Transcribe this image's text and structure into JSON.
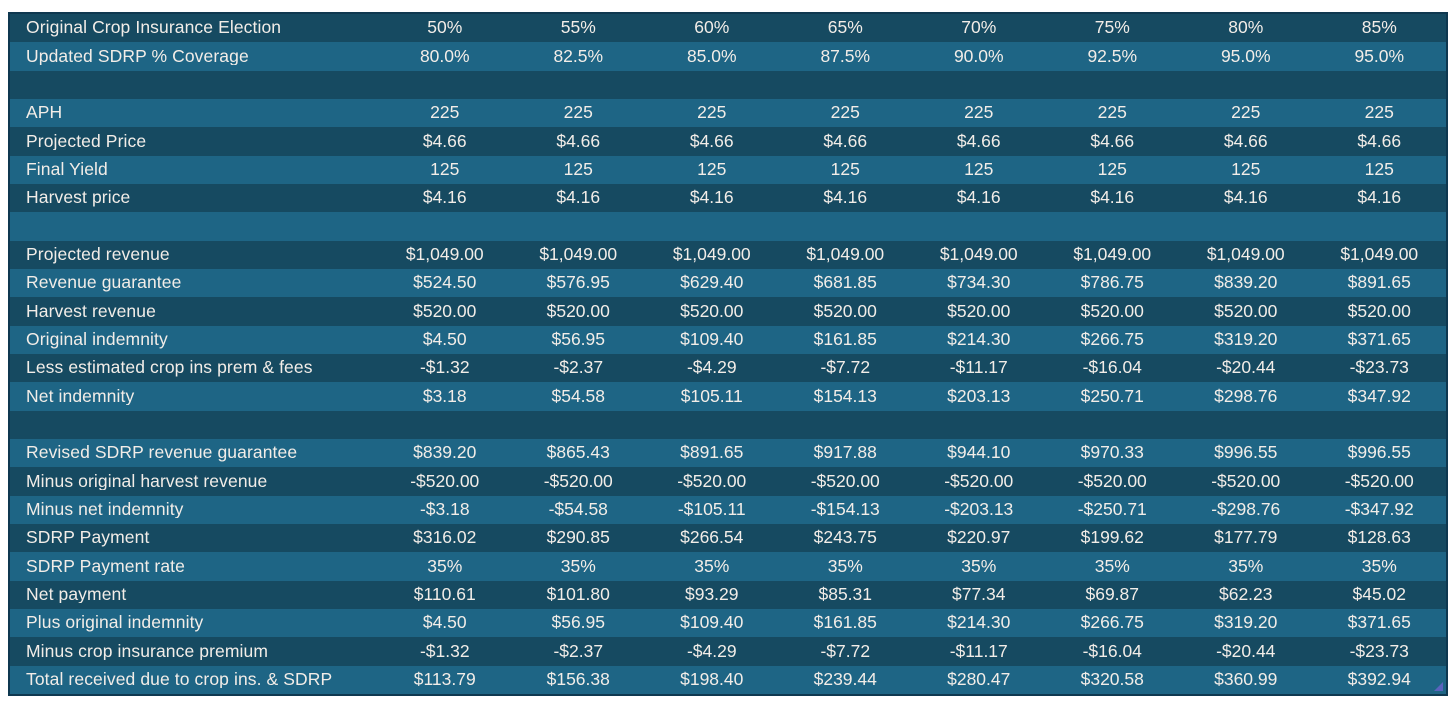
{
  "colors": {
    "page_background": "#ffffff",
    "row_dark": "#164a61",
    "row_light": "#1e6585",
    "text": "#f2ede8",
    "table_border": "#0f3850",
    "fill_handle": "#5a63bd"
  },
  "table": {
    "columns": 8,
    "rows": [
      {
        "label": "Original Crop Insurance Election",
        "values": [
          "50%",
          "55%",
          "60%",
          "65%",
          "70%",
          "75%",
          "80%",
          "85%"
        ]
      },
      {
        "label": "Updated SDRP % Coverage",
        "values": [
          "80.0%",
          "82.5%",
          "85.0%",
          "87.5%",
          "90.0%",
          "92.5%",
          "95.0%",
          "95.0%"
        ]
      },
      {
        "spacer": true
      },
      {
        "label": "APH",
        "values": [
          "225",
          "225",
          "225",
          "225",
          "225",
          "225",
          "225",
          "225"
        ]
      },
      {
        "label": "Projected Price",
        "values": [
          "$4.66",
          "$4.66",
          "$4.66",
          "$4.66",
          "$4.66",
          "$4.66",
          "$4.66",
          "$4.66"
        ]
      },
      {
        "label": "Final Yield",
        "values": [
          "125",
          "125",
          "125",
          "125",
          "125",
          "125",
          "125",
          "125"
        ]
      },
      {
        "label": "Harvest price",
        "values": [
          "$4.16",
          "$4.16",
          "$4.16",
          "$4.16",
          "$4.16",
          "$4.16",
          "$4.16",
          "$4.16"
        ]
      },
      {
        "spacer": true
      },
      {
        "label": "Projected revenue",
        "values": [
          "$1,049.00",
          "$1,049.00",
          "$1,049.00",
          "$1,049.00",
          "$1,049.00",
          "$1,049.00",
          "$1,049.00",
          "$1,049.00"
        ]
      },
      {
        "label": "Revenue guarantee",
        "values": [
          "$524.50",
          "$576.95",
          "$629.40",
          "$681.85",
          "$734.30",
          "$786.75",
          "$839.20",
          "$891.65"
        ]
      },
      {
        "label": "Harvest revenue",
        "values": [
          "$520.00",
          "$520.00",
          "$520.00",
          "$520.00",
          "$520.00",
          "$520.00",
          "$520.00",
          "$520.00"
        ]
      },
      {
        "label": "Original indemnity",
        "values": [
          "$4.50",
          "$56.95",
          "$109.40",
          "$161.85",
          "$214.30",
          "$266.75",
          "$319.20",
          "$371.65"
        ]
      },
      {
        "label": "Less estimated crop ins prem & fees",
        "values": [
          "-$1.32",
          "-$2.37",
          "-$4.29",
          "-$7.72",
          "-$11.17",
          "-$16.04",
          "-$20.44",
          "-$23.73"
        ]
      },
      {
        "label": "Net indemnity",
        "values": [
          "$3.18",
          "$54.58",
          "$105.11",
          "$154.13",
          "$203.13",
          "$250.71",
          "$298.76",
          "$347.92"
        ]
      },
      {
        "spacer": true
      },
      {
        "label": "Revised SDRP revenue guarantee",
        "values": [
          "$839.20",
          "$865.43",
          "$891.65",
          "$917.88",
          "$944.10",
          "$970.33",
          "$996.55",
          "$996.55"
        ]
      },
      {
        "label": "Minus original harvest revenue",
        "values": [
          "-$520.00",
          "-$520.00",
          "-$520.00",
          "-$520.00",
          "-$520.00",
          "-$520.00",
          "-$520.00",
          "-$520.00"
        ]
      },
      {
        "label": "Minus net indemnity",
        "values": [
          "-$3.18",
          "-$54.58",
          "-$105.11",
          "-$154.13",
          "-$203.13",
          "-$250.71",
          "-$298.76",
          "-$347.92"
        ]
      },
      {
        "label": "SDRP Payment",
        "values": [
          "$316.02",
          "$290.85",
          "$266.54",
          "$243.75",
          "$220.97",
          "$199.62",
          "$177.79",
          "$128.63"
        ]
      },
      {
        "label": "SDRP Payment rate",
        "values": [
          "35%",
          "35%",
          "35%",
          "35%",
          "35%",
          "35%",
          "35%",
          "35%"
        ]
      },
      {
        "label": "Net payment",
        "values": [
          "$110.61",
          "$101.80",
          "$93.29",
          "$85.31",
          "$77.34",
          "$69.87",
          "$62.23",
          "$45.02"
        ]
      },
      {
        "label": "Plus original indemnity",
        "values": [
          "$4.50",
          "$56.95",
          "$109.40",
          "$161.85",
          "$214.30",
          "$266.75",
          "$319.20",
          "$371.65"
        ]
      },
      {
        "label": "Minus crop insurance premium",
        "values": [
          "-$1.32",
          "-$2.37",
          "-$4.29",
          "-$7.72",
          "-$11.17",
          "-$16.04",
          "-$20.44",
          "-$23.73"
        ]
      },
      {
        "label": "Total received due to crop ins. & SDRP",
        "values": [
          "$113.79",
          "$156.38",
          "$198.40",
          "$239.44",
          "$280.47",
          "$320.58",
          "$360.99",
          "$392.94"
        ]
      }
    ]
  }
}
